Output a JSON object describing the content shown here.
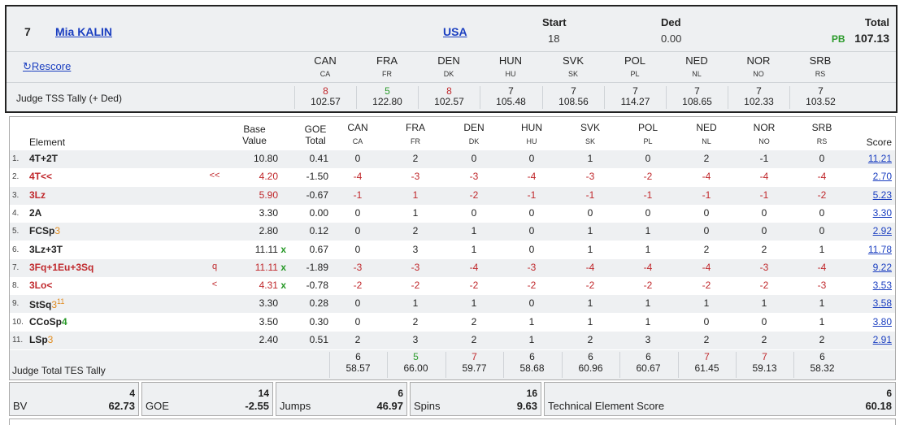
{
  "skater": {
    "rank": "7",
    "name": "Mia KALIN",
    "nation": "USA"
  },
  "start": {
    "label": "Start",
    "value": "18"
  },
  "ded": {
    "label": "Ded",
    "value": "0.00"
  },
  "total": {
    "label": "Total",
    "pb": "PB",
    "value": "107.13"
  },
  "rescore": {
    "icon": "refresh-icon",
    "glyph": "↻",
    "label": "Rescore"
  },
  "judges": [
    {
      "name": "CAN",
      "code": "CA"
    },
    {
      "name": "FRA",
      "code": "FR"
    },
    {
      "name": "DEN",
      "code": "DK"
    },
    {
      "name": "HUN",
      "code": "HU"
    },
    {
      "name": "SVK",
      "code": "SK"
    },
    {
      "name": "POL",
      "code": "PL"
    },
    {
      "name": "NED",
      "code": "NL"
    },
    {
      "name": "NOR",
      "code": "NO"
    },
    {
      "name": "SRB",
      "code": "RS"
    }
  ],
  "tss_tally": {
    "label": "Judge TSS Tally (+ Ded)",
    "cells": [
      {
        "count": "8",
        "value": "102.57",
        "tone": "red"
      },
      {
        "count": "5",
        "value": "122.80",
        "tone": "green"
      },
      {
        "count": "8",
        "value": "102.57",
        "tone": "red"
      },
      {
        "count": "7",
        "value": "105.48",
        "tone": ""
      },
      {
        "count": "7",
        "value": "108.56",
        "tone": ""
      },
      {
        "count": "7",
        "value": "114.27",
        "tone": ""
      },
      {
        "count": "7",
        "value": "108.65",
        "tone": ""
      },
      {
        "count": "7",
        "value": "102.33",
        "tone": ""
      },
      {
        "count": "7",
        "value": "103.52",
        "tone": ""
      }
    ]
  },
  "table_headers": {
    "element": "Element",
    "base_value": [
      "Base",
      "Value"
    ],
    "goe_total": [
      "GOE",
      "Total"
    ],
    "score": "Score"
  },
  "elements": [
    {
      "idx": "1.",
      "code": "4T+2T",
      "level": "",
      "red": false,
      "flag": "",
      "bv": "10.80",
      "bonus": "",
      "goe": "0.41",
      "marks": [
        "0",
        "2",
        "0",
        "0",
        "1",
        "0",
        "2",
        "-1",
        "0"
      ],
      "score": "11.21"
    },
    {
      "idx": "2.",
      "code": "4T<<",
      "level": "",
      "red": true,
      "flag": "<<",
      "bv": "4.20",
      "bonus": "",
      "goe": "-1.50",
      "marks": [
        "-4",
        "-3",
        "-3",
        "-4",
        "-3",
        "-2",
        "-4",
        "-4",
        "-4"
      ],
      "score": "2.70"
    },
    {
      "idx": "3.",
      "code": "3Lz",
      "level": "",
      "red": true,
      "flag": "",
      "bv": "5.90",
      "bonus": "",
      "goe": "-0.67",
      "marks": [
        "-1",
        "1",
        "-2",
        "-1",
        "-1",
        "-1",
        "-1",
        "-1",
        "-2"
      ],
      "score": "5.23"
    },
    {
      "idx": "4.",
      "code": "2A",
      "level": "",
      "red": false,
      "flag": "",
      "bv": "3.30",
      "bonus": "",
      "goe": "0.00",
      "marks": [
        "0",
        "1",
        "0",
        "0",
        "0",
        "0",
        "0",
        "0",
        "0"
      ],
      "score": "3.30"
    },
    {
      "idx": "5.",
      "code": "FCSp",
      "level": "3",
      "levelTone": "orange",
      "red": false,
      "flag": "",
      "bv": "2.80",
      "bonus": "",
      "goe": "0.12",
      "marks": [
        "0",
        "2",
        "1",
        "0",
        "1",
        "1",
        "0",
        "0",
        "0"
      ],
      "score": "2.92"
    },
    {
      "idx": "6.",
      "code": "3Lz+3T",
      "level": "",
      "red": false,
      "flag": "",
      "bv": "11.11",
      "bonus": "x",
      "goe": "0.67",
      "marks": [
        "0",
        "3",
        "1",
        "0",
        "1",
        "1",
        "2",
        "2",
        "1"
      ],
      "score": "11.78"
    },
    {
      "idx": "7.",
      "code": "3Fq+1Eu+3Sq",
      "level": "",
      "red": true,
      "flag": "q",
      "bv": "11.11",
      "bonus": "x",
      "goe": "-1.89",
      "marks": [
        "-3",
        "-3",
        "-4",
        "-3",
        "-4",
        "-4",
        "-4",
        "-3",
        "-4"
      ],
      "score": "9.22"
    },
    {
      "idx": "8.",
      "code": "3Lo<",
      "level": "",
      "red": true,
      "flag": "<",
      "bv": "4.31",
      "bonus": "x",
      "goe": "-0.78",
      "marks": [
        "-2",
        "-2",
        "-2",
        "-2",
        "-2",
        "-2",
        "-2",
        "-2",
        "-3"
      ],
      "score": "3.53"
    },
    {
      "idx": "9.",
      "code": "StSq",
      "level": "3",
      "levelTone": "orange",
      "sup": "11",
      "red": false,
      "flag": "",
      "bv": "3.30",
      "bonus": "",
      "goe": "0.28",
      "marks": [
        "0",
        "1",
        "1",
        "0",
        "1",
        "1",
        "1",
        "1",
        "1"
      ],
      "score": "3.58"
    },
    {
      "idx": "10.",
      "code": "CCoSp",
      "level": "4",
      "levelTone": "green",
      "red": false,
      "flag": "",
      "bv": "3.50",
      "bonus": "",
      "goe": "0.30",
      "marks": [
        "0",
        "2",
        "2",
        "1",
        "1",
        "1",
        "0",
        "0",
        "1"
      ],
      "score": "3.80"
    },
    {
      "idx": "11.",
      "code": "LSp",
      "level": "3",
      "levelTone": "orange",
      "red": false,
      "flag": "",
      "bv": "2.40",
      "bonus": "",
      "goe": "0.51",
      "marks": [
        "2",
        "3",
        "2",
        "1",
        "2",
        "3",
        "2",
        "2",
        "2"
      ],
      "score": "2.91"
    }
  ],
  "tes_tally": {
    "label": "Judge Total TES Tally",
    "cells": [
      {
        "count": "6",
        "value": "58.57",
        "tone": ""
      },
      {
        "count": "5",
        "value": "66.00",
        "tone": "green"
      },
      {
        "count": "7",
        "value": "59.77",
        "tone": "red"
      },
      {
        "count": "6",
        "value": "58.68",
        "tone": ""
      },
      {
        "count": "6",
        "value": "60.96",
        "tone": ""
      },
      {
        "count": "6",
        "value": "60.67",
        "tone": ""
      },
      {
        "count": "7",
        "value": "61.45",
        "tone": "red"
      },
      {
        "count": "7",
        "value": "59.13",
        "tone": "red"
      },
      {
        "count": "6",
        "value": "58.32",
        "tone": ""
      }
    ]
  },
  "summary": [
    {
      "key": "bv",
      "label": "BV",
      "count": "4",
      "value": "62.73"
    },
    {
      "key": "goe",
      "label": "GOE",
      "count": "14",
      "value": "-2.55"
    },
    {
      "key": "jumps",
      "label": "Jumps",
      "count": "6",
      "value": "46.97"
    },
    {
      "key": "spins",
      "label": "Spins",
      "count": "16",
      "value": "9.63"
    },
    {
      "key": "tes",
      "label": "Technical Element Score",
      "count": "6",
      "value": "60.18"
    }
  ]
}
